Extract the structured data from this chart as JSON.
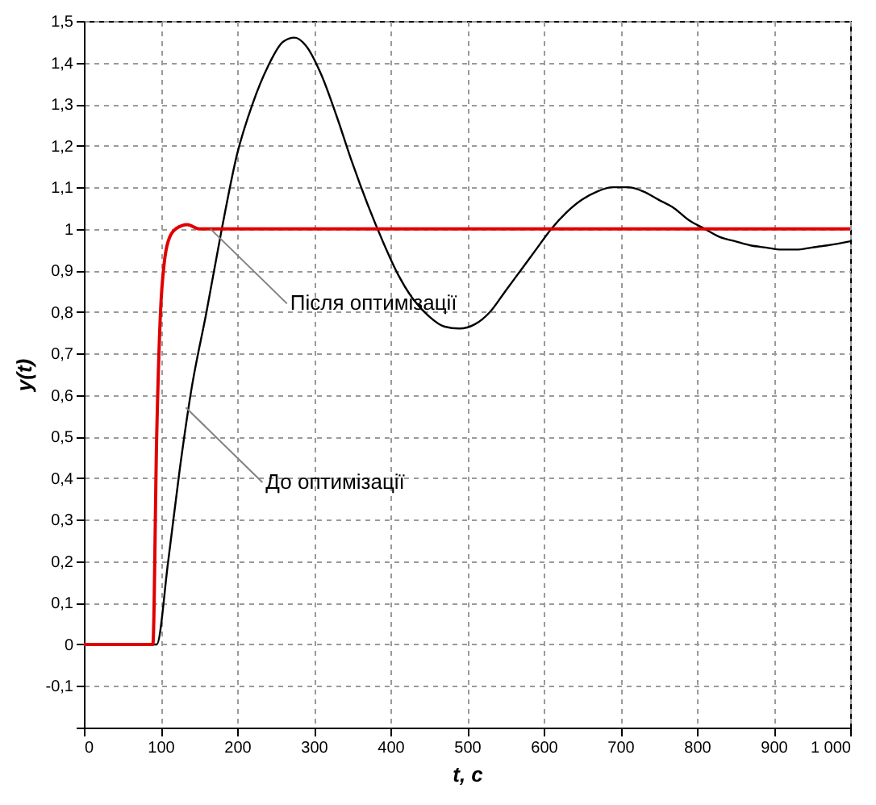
{
  "chart_data": {
    "type": "line",
    "xlabel": "t, c",
    "ylabel": "y(t)",
    "xlim": [
      0,
      1000
    ],
    "xticks": [
      0,
      100,
      200,
      300,
      400,
      500,
      600,
      700,
      800,
      900,
      {
        "value": 1000,
        "label": "1 000"
      }
    ],
    "ylim": [
      -0.2,
      1.5
    ],
    "yticks": [
      {
        "value": -0.2,
        "label": null
      },
      {
        "value": -0.1,
        "label": "-0,1"
      },
      0,
      {
        "value": 0.1,
        "label": "0,1"
      },
      {
        "value": 0.2,
        "label": "0,2"
      },
      {
        "value": 0.3,
        "label": "0,3"
      },
      {
        "value": 0.4,
        "label": "0,4"
      },
      {
        "value": 0.5,
        "label": "0,5"
      },
      {
        "value": 0.6,
        "label": "0,6"
      },
      {
        "value": 0.7,
        "label": "0,7"
      },
      {
        "value": 0.8,
        "label": "0,8"
      },
      {
        "value": 0.9,
        "label": "0,9"
      },
      1,
      {
        "value": 1.1,
        "label": "1,1"
      },
      {
        "value": 1.2,
        "label": "1,2"
      },
      {
        "value": 1.3,
        "label": "1,3"
      },
      {
        "value": 1.4,
        "label": "1,4"
      },
      {
        "value": 1.5,
        "label": "1,5"
      }
    ],
    "grid": true,
    "line_style": "solid",
    "series": [
      {
        "color": "#000000",
        "x": [
          0,
          95,
          110,
          125,
          140,
          160,
          180,
          200,
          220,
          240,
          260,
          275,
          290,
          310,
          330,
          350,
          370,
          390,
          410,
          430,
          450,
          470,
          490,
          510,
          530,
          550,
          570,
          590,
          610,
          630,
          650,
          670,
          690,
          710,
          730,
          750,
          770,
          790,
          810,
          830,
          850,
          870,
          890,
          910,
          930,
          950,
          970,
          1000
        ],
        "values": [
          0,
          0,
          0.2,
          0.42,
          0.61,
          0.8,
          1.0,
          1.18,
          1.3,
          1.39,
          1.45,
          1.46,
          1.44,
          1.37,
          1.27,
          1.16,
          1.06,
          0.97,
          0.89,
          0.83,
          0.79,
          0.765,
          0.76,
          0.77,
          0.8,
          0.85,
          0.9,
          0.95,
          1.0,
          1.04,
          1.07,
          1.09,
          1.1,
          1.1,
          1.09,
          1.07,
          1.05,
          1.02,
          1.0,
          0.98,
          0.97,
          0.96,
          0.955,
          0.95,
          0.95,
          0.955,
          0.96,
          0.97
        ]
      },
      {
        "color": "#e00000",
        "x": [
          0,
          90,
          95,
          100,
          105,
          110,
          120,
          135,
          150,
          1000
        ],
        "values": [
          0,
          0,
          0.5,
          0.8,
          0.92,
          0.97,
          1.0,
          1.01,
          1.0,
          1.0
        ]
      }
    ],
    "annotations": [
      {
        "text": "Після оптимізації",
        "x": 165,
        "y": 1.0
      },
      {
        "text": "До оптимізації",
        "x": 133,
        "y": 0.57
      }
    ]
  }
}
